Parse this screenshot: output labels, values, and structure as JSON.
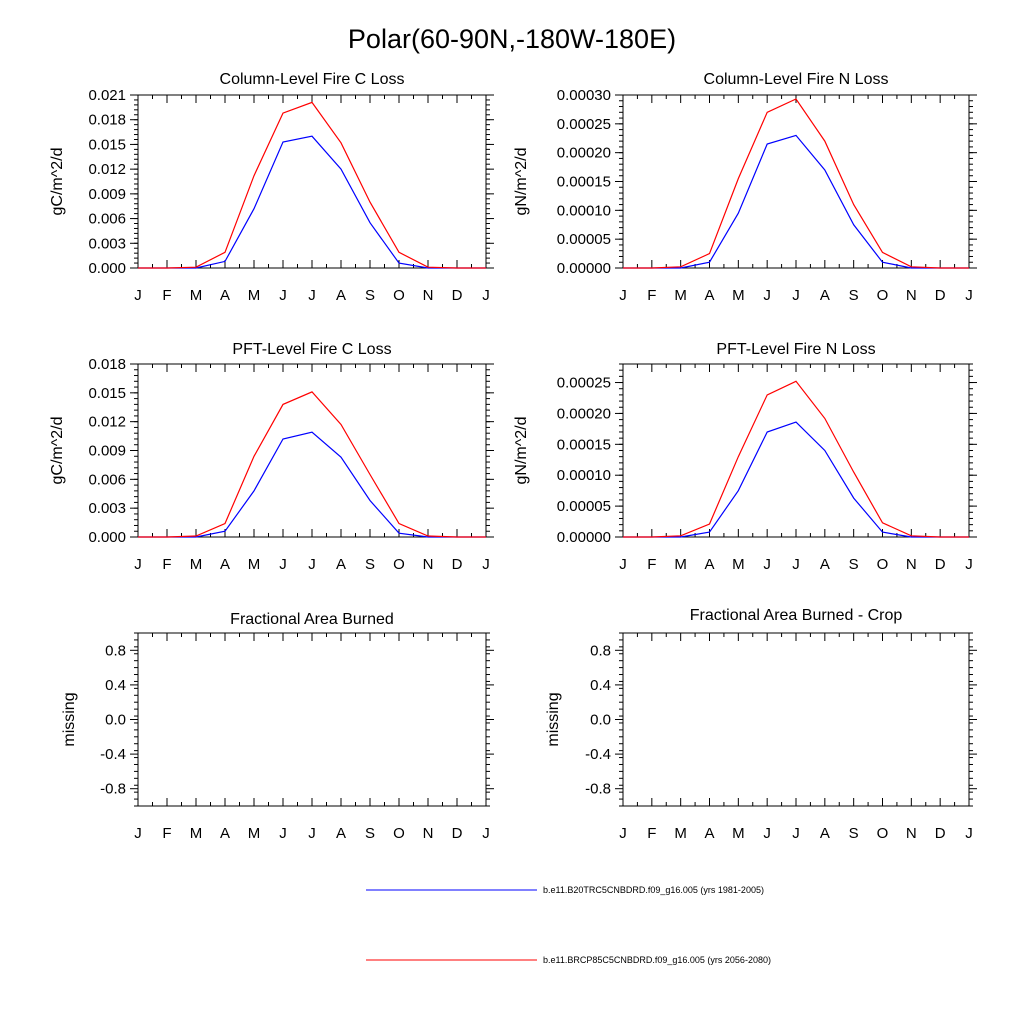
{
  "figure": {
    "title": "Polar(60-90N,-180W-180E)"
  },
  "chart_data": [
    {
      "type": "line",
      "title": "Column-Level Fire C Loss",
      "xlabel": "",
      "ylabel": "gC/m^2/d",
      "x": [
        "J",
        "F",
        "M",
        "A",
        "M",
        "J",
        "J",
        "A",
        "S",
        "O",
        "N",
        "D",
        "J"
      ],
      "ylim": [
        0,
        0.021
      ],
      "yticks": [
        "0.000",
        "0.003",
        "0.006",
        "0.009",
        "0.012",
        "0.015",
        "0.018",
        "0.021"
      ],
      "series": [
        {
          "name": "b.e11.B20TRC5CNBDRD.f09_g16.005 (yrs 1981-2005)",
          "color": "#0000ff",
          "values": [
            0,
            0,
            0,
            0.0008,
            0.0072,
            0.0153,
            0.016,
            0.012,
            0.0055,
            0.0006,
            0,
            0,
            0
          ]
        },
        {
          "name": "b.e11.BRCP85C5CNBDRD.f09_g16.005 (yrs 2056-2080)",
          "color": "#ff0000",
          "values": [
            0,
            0,
            0.0001,
            0.0019,
            0.0112,
            0.0188,
            0.0201,
            0.0152,
            0.008,
            0.0019,
            0.0001,
            0,
            0
          ]
        }
      ]
    },
    {
      "type": "line",
      "title": "Column-Level Fire N Loss",
      "xlabel": "",
      "ylabel": "gN/m^2/d",
      "x": [
        "J",
        "F",
        "M",
        "A",
        "M",
        "J",
        "J",
        "A",
        "S",
        "O",
        "N",
        "D",
        "J"
      ],
      "ylim": [
        0,
        0.0003
      ],
      "yticks": [
        "0.00000",
        "0.00005",
        "0.00010",
        "0.00015",
        "0.00020",
        "0.00025",
        "0.00030"
      ],
      "series": [
        {
          "name": "b.e11.B20TRC5CNBDRD.f09_g16.005 (yrs 1981-2005)",
          "color": "#0000ff",
          "values": [
            0,
            0,
            0,
            1e-05,
            9.5e-05,
            0.000215,
            0.00023,
            0.00017,
            7.5e-05,
            1e-05,
            0,
            0,
            0
          ]
        },
        {
          "name": "b.e11.BRCP85C5CNBDRD.f09_g16.005 (yrs 2056-2080)",
          "color": "#ff0000",
          "values": [
            0,
            0,
            2e-06,
            2.5e-05,
            0.000155,
            0.00027,
            0.000293,
            0.00022,
            0.00011,
            2.7e-05,
            2e-06,
            0,
            0
          ]
        }
      ]
    },
    {
      "type": "line",
      "title": "PFT-Level Fire C Loss",
      "xlabel": "",
      "ylabel": "gC/m^2/d",
      "x": [
        "J",
        "F",
        "M",
        "A",
        "M",
        "J",
        "J",
        "A",
        "S",
        "O",
        "N",
        "D",
        "J"
      ],
      "ylim": [
        0,
        0.018
      ],
      "yticks": [
        "0.000",
        "0.003",
        "0.006",
        "0.009",
        "0.012",
        "0.015",
        "0.018"
      ],
      "series": [
        {
          "name": "b.e11.B20TRC5CNBDRD.f09_g16.005 (yrs 1981-2005)",
          "color": "#0000ff",
          "values": [
            0,
            0,
            0,
            0.0006,
            0.0048,
            0.0102,
            0.0109,
            0.0083,
            0.0038,
            0.0004,
            0,
            0,
            0
          ]
        },
        {
          "name": "b.e11.BRCP85C5CNBDRD.f09_g16.005 (yrs 2056-2080)",
          "color": "#ff0000",
          "values": [
            0,
            0,
            0.0001,
            0.0014,
            0.0084,
            0.0138,
            0.0151,
            0.0117,
            0.0065,
            0.0014,
            0.0001,
            0,
            0
          ]
        }
      ]
    },
    {
      "type": "line",
      "title": "PFT-Level Fire N Loss",
      "xlabel": "",
      "ylabel": "gN/m^2/d",
      "x": [
        "J",
        "F",
        "M",
        "A",
        "M",
        "J",
        "J",
        "A",
        "S",
        "O",
        "N",
        "D",
        "J"
      ],
      "ylim": [
        0,
        0.00028
      ],
      "yticks": [
        "0.00000",
        "0.00005",
        "0.00010",
        "0.00015",
        "0.00020",
        "0.00025"
      ],
      "series": [
        {
          "name": "b.e11.B20TRC5CNBDRD.f09_g16.005 (yrs 1981-2005)",
          "color": "#0000ff",
          "values": [
            0,
            0,
            0,
            8e-06,
            7.5e-05,
            0.00017,
            0.000186,
            0.00014,
            6.3e-05,
            8e-06,
            0,
            0,
            0
          ]
        },
        {
          "name": "b.e11.BRCP85C5CNBDRD.f09_g16.005 (yrs 2056-2080)",
          "color": "#ff0000",
          "values": [
            0,
            0,
            2e-06,
            2.1e-05,
            0.00013,
            0.00023,
            0.000252,
            0.000192,
            0.000105,
            2.3e-05,
            2e-06,
            0,
            0
          ]
        }
      ]
    },
    {
      "type": "line",
      "title": "Fractional Area Burned",
      "xlabel": "",
      "ylabel": "missing",
      "x": [
        "J",
        "F",
        "M",
        "A",
        "M",
        "J",
        "J",
        "A",
        "S",
        "O",
        "N",
        "D",
        "J"
      ],
      "ylim": [
        -1,
        1
      ],
      "yticks": [
        "-0.8",
        "-0.4",
        "0.0",
        "0.4",
        "0.8"
      ],
      "series": []
    },
    {
      "type": "line",
      "title": "Fractional Area Burned - Crop",
      "xlabel": "",
      "ylabel": "missing",
      "x": [
        "J",
        "F",
        "M",
        "A",
        "M",
        "J",
        "J",
        "A",
        "S",
        "O",
        "N",
        "D",
        "J"
      ],
      "ylim": [
        -1,
        1
      ],
      "yticks": [
        "-0.8",
        "-0.4",
        "0.0",
        "0.4",
        "0.8"
      ],
      "series": []
    }
  ],
  "legend": [
    {
      "label": "b.e11.B20TRC5CNBDRD.f09_g16.005 (yrs 1981-2005)",
      "color": "#0000ff"
    },
    {
      "label": "b.e11.BRCP85C5CNBDRD.f09_g16.005 (yrs 2056-2080)",
      "color": "#ff0000"
    }
  ]
}
